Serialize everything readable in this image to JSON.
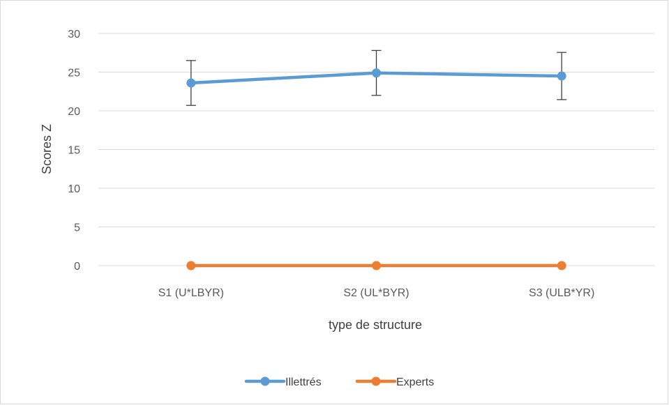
{
  "chart_data": {
    "type": "line",
    "title": "",
    "xlabel": "type de structure",
    "ylabel": "Scores Z",
    "categories": [
      "S1 (U*LBYR)",
      "S2 (UL*BYR)",
      "S3 (ULB*YR)"
    ],
    "ylim": [
      0,
      30
    ],
    "yticks": [
      0,
      5,
      10,
      15,
      20,
      25,
      30
    ],
    "grid": true,
    "legend": "bottom",
    "series": [
      {
        "name": "Illettrés",
        "color": "#5b9bd5",
        "values": [
          23.6,
          24.9,
          24.5
        ],
        "error": [
          2.9,
          2.9,
          3.05
        ]
      },
      {
        "name": "Experts",
        "color": "#ed7d31",
        "values": [
          0,
          0,
          0
        ],
        "error": null
      }
    ]
  }
}
